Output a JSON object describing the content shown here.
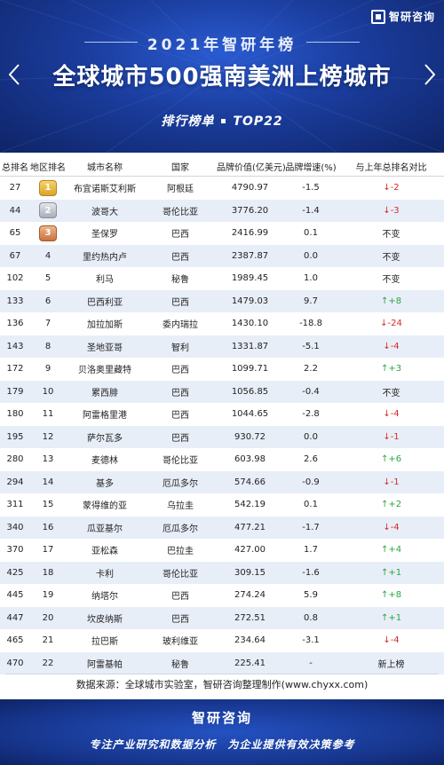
{
  "header": {
    "logo": "智研咨询",
    "year_title": "2021年智研年榜",
    "main_title": "全球城市500强南美洲上榜城市",
    "subtitle_left": "排行榜单",
    "subtitle_right": "TOP22"
  },
  "table": {
    "columns": [
      "总排名",
      "地区排名",
      "城市名称",
      "国家",
      "品牌价值(亿美元)",
      "品牌增速(%)",
      "与上年总排名对比"
    ],
    "rows": [
      {
        "total": "27",
        "region": "1",
        "medal": "gold",
        "city": "布宜诺斯艾利斯",
        "country": "阿根廷",
        "value": "4790.97",
        "growth": "-1.5",
        "change": "↓-2",
        "dir": "down"
      },
      {
        "total": "44",
        "region": "2",
        "medal": "silver",
        "city": "波哥大",
        "country": "哥伦比亚",
        "value": "3776.20",
        "growth": "-1.4",
        "change": "↓-3",
        "dir": "down"
      },
      {
        "total": "65",
        "region": "3",
        "medal": "bronze",
        "city": "圣保罗",
        "country": "巴西",
        "value": "2416.99",
        "growth": "0.1",
        "change": "不变",
        "dir": "same"
      },
      {
        "total": "67",
        "region": "4",
        "city": "里约热内卢",
        "country": "巴西",
        "value": "2387.87",
        "growth": "0.0",
        "change": "不变",
        "dir": "same"
      },
      {
        "total": "102",
        "region": "5",
        "city": "利马",
        "country": "秘鲁",
        "value": "1989.45",
        "growth": "1.0",
        "change": "不变",
        "dir": "same"
      },
      {
        "total": "133",
        "region": "6",
        "city": "巴西利亚",
        "country": "巴西",
        "value": "1479.03",
        "growth": "9.7",
        "change": "↑+8",
        "dir": "up"
      },
      {
        "total": "136",
        "region": "7",
        "city": "加拉加斯",
        "country": "委内瑞拉",
        "value": "1430.10",
        "growth": "-18.8",
        "change": "↓-24",
        "dir": "down"
      },
      {
        "total": "143",
        "region": "8",
        "city": "圣地亚哥",
        "country": "智利",
        "value": "1331.87",
        "growth": "-5.1",
        "change": "↓-4",
        "dir": "down"
      },
      {
        "total": "172",
        "region": "9",
        "city": "贝洛奥里藏特",
        "country": "巴西",
        "value": "1099.71",
        "growth": "2.2",
        "change": "↑+3",
        "dir": "up"
      },
      {
        "total": "179",
        "region": "10",
        "city": "累西腓",
        "country": "巴西",
        "value": "1056.85",
        "growth": "-0.4",
        "change": "不变",
        "dir": "same"
      },
      {
        "total": "180",
        "region": "11",
        "city": "阿雷格里港",
        "country": "巴西",
        "value": "1044.65",
        "growth": "-2.8",
        "change": "↓-4",
        "dir": "down"
      },
      {
        "total": "195",
        "region": "12",
        "city": "萨尔瓦多",
        "country": "巴西",
        "value": "930.72",
        "growth": "0.0",
        "change": "↓-1",
        "dir": "down"
      },
      {
        "total": "280",
        "region": "13",
        "city": "麦德林",
        "country": "哥伦比亚",
        "value": "603.98",
        "growth": "2.6",
        "change": "↑+6",
        "dir": "up"
      },
      {
        "total": "294",
        "region": "14",
        "city": "基多",
        "country": "厄瓜多尔",
        "value": "574.66",
        "growth": "-0.9",
        "change": "↓-1",
        "dir": "down"
      },
      {
        "total": "311",
        "region": "15",
        "city": "蒙得维的亚",
        "country": "乌拉圭",
        "value": "542.19",
        "growth": "0.1",
        "change": "↑+2",
        "dir": "up"
      },
      {
        "total": "340",
        "region": "16",
        "city": "瓜亚基尔",
        "country": "厄瓜多尔",
        "value": "477.21",
        "growth": "-1.7",
        "change": "↓-4",
        "dir": "down"
      },
      {
        "total": "370",
        "region": "17",
        "city": "亚松森",
        "country": "巴拉圭",
        "value": "427.00",
        "growth": "1.7",
        "change": "↑+4",
        "dir": "up"
      },
      {
        "total": "425",
        "region": "18",
        "city": "卡利",
        "country": "哥伦比亚",
        "value": "309.15",
        "growth": "-1.6",
        "change": "↑+1",
        "dir": "up"
      },
      {
        "total": "445",
        "region": "19",
        "city": "纳塔尔",
        "country": "巴西",
        "value": "274.24",
        "growth": "5.9",
        "change": "↑+8",
        "dir": "up"
      },
      {
        "total": "447",
        "region": "20",
        "city": "坎皮纳斯",
        "country": "巴西",
        "value": "272.51",
        "growth": "0.8",
        "change": "↑+1",
        "dir": "up"
      },
      {
        "total": "465",
        "region": "21",
        "city": "拉巴斯",
        "country": "玻利维亚",
        "value": "234.64",
        "growth": "-3.1",
        "change": "↓-4",
        "dir": "down"
      },
      {
        "total": "470",
        "region": "22",
        "city": "阿雷基帕",
        "country": "秘鲁",
        "value": "225.41",
        "growth": "-",
        "change": "新上榜",
        "dir": "same"
      }
    ]
  },
  "source": "数据来源：全球城市实验室，智研咨询整理制作(www.chyxx.com)",
  "footer": {
    "brand": "智研咨询",
    "slogan": "专注产业研究和数据分析　为企业提供有效决策参考"
  },
  "colors": {
    "header_blue": "#1a3c9c",
    "row_alt": "#e8eef7",
    "down": "#d62a2a",
    "up": "#28a745"
  }
}
